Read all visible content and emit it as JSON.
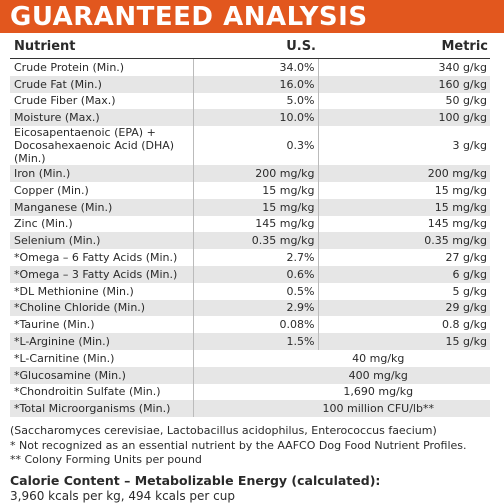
{
  "header": {
    "title": "GUARANTEED ANALYSIS"
  },
  "table": {
    "columns": [
      "Nutrient",
      "U.S.",
      "Metric"
    ],
    "rows": [
      [
        "Crude Protein (Min.)",
        "34.0%",
        "340 g/kg"
      ],
      [
        "Crude Fat (Min.)",
        "16.0%",
        "160 g/kg"
      ],
      [
        "Crude Fiber (Max.)",
        "5.0%",
        "50 g/kg"
      ],
      [
        "Moisture (Max.)",
        "10.0%",
        "100 g/kg"
      ],
      [
        "Eicosapentaenoic (EPA) + Docosahexaenoic Acid (DHA) (Min.)",
        "0.3%",
        "3 g/kg"
      ],
      [
        "Iron (Min.)",
        "200 mg/kg",
        "200 mg/kg"
      ],
      [
        "Copper (Min.)",
        "15 mg/kg",
        "15 mg/kg"
      ],
      [
        "Manganese (Min.)",
        "15 mg/kg",
        "15 mg/kg"
      ],
      [
        "Zinc (Min.)",
        "145 mg/kg",
        "145 mg/kg"
      ],
      [
        "Selenium (Min.)",
        "0.35 mg/kg",
        "0.35 mg/kg"
      ],
      [
        "*Omega – 6 Fatty Acids (Min.)",
        "2.7%",
        "27 g/kg"
      ],
      [
        "*Omega – 3 Fatty Acids (Min.)",
        "0.6%",
        "6 g/kg"
      ],
      [
        "*DL Methionine (Min.)",
        "0.5%",
        "5 g/kg"
      ],
      [
        "*Choline Chloride (Min.)",
        "2.9%",
        "29 g/kg"
      ],
      [
        "*Taurine (Min.)",
        "0.08%",
        "0.8 g/kg"
      ],
      [
        "*L-Arginine (Min.)",
        "1.5%",
        "15 g/kg"
      ],
      [
        "*L-Carnitine (Min.)",
        "40 mg/kg"
      ],
      [
        "*Glucosamine (Min.)",
        "400 mg/kg"
      ],
      [
        "*Chondroitin Sulfate (Min.)",
        "1,690 mg/kg"
      ],
      [
        "*Total Microorganisms (Min.)",
        "100 million CFU/lb**"
      ]
    ]
  },
  "footnotes": [
    "(Saccharomyces cerevisiae, Lactobacillus acidophilus, Enterococcus faecium)",
    "* Not recognized as an essential nutrient by the AAFCO Dog Food Nutrient Profiles.",
    "** Colony Forming Units per pound"
  ],
  "calorie": {
    "title": "Calorie Content – Metabolizable Energy (calculated):",
    "text": "3,960 kcals per kg, 494 kcals per cup"
  }
}
